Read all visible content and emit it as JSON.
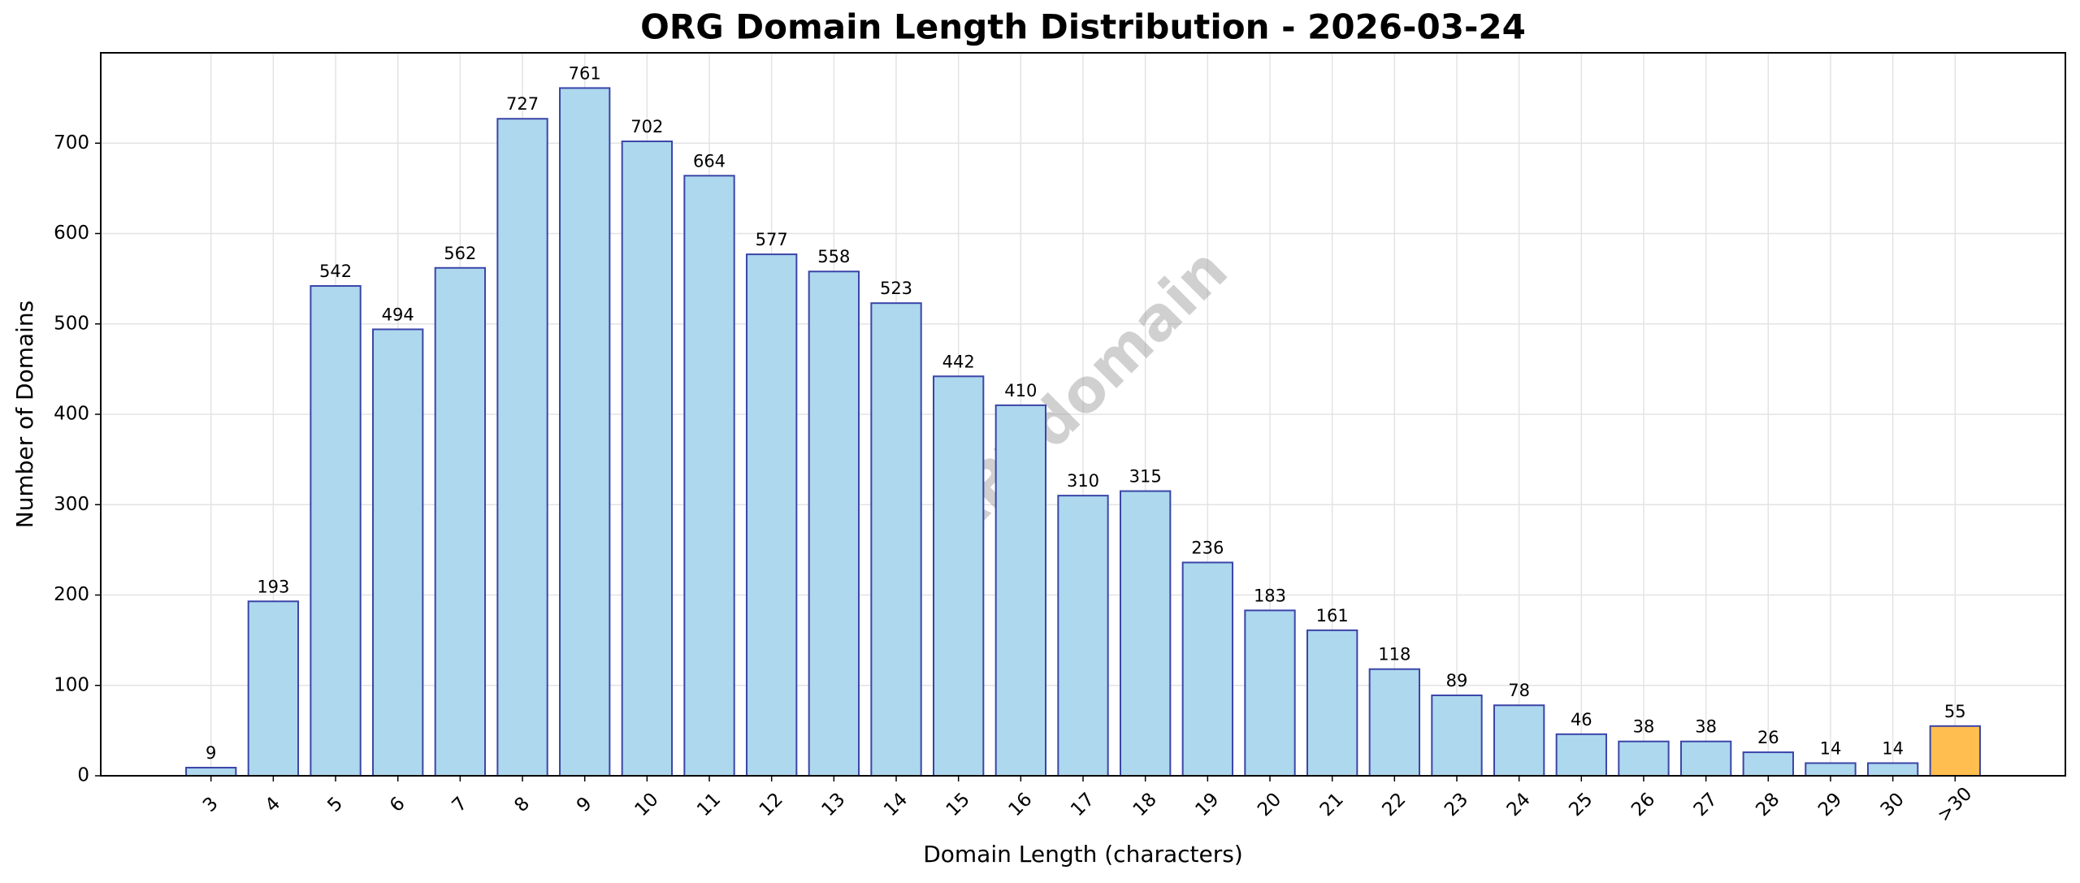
{
  "chart_data": {
    "type": "bar",
    "title": "ORG Domain Length Distribution - 2026-03-24",
    "x_label": "Domain Length (characters)",
    "y_label": "Number of Domains",
    "watermark": "ABTdomain",
    "categories": [
      "3",
      "4",
      "5",
      "6",
      "7",
      "8",
      "9",
      "10",
      "11",
      "12",
      "13",
      "14",
      "15",
      "16",
      "17",
      "18",
      "19",
      "20",
      "21",
      "22",
      "23",
      "24",
      "25",
      "26",
      "27",
      "28",
      "29",
      "30",
      ">30"
    ],
    "values": [
      9,
      193,
      542,
      494,
      562,
      727,
      761,
      702,
      664,
      577,
      558,
      523,
      442,
      410,
      310,
      315,
      236,
      183,
      161,
      118,
      89,
      78,
      46,
      38,
      38,
      26,
      14,
      14,
      55
    ],
    "colors": [
      "#add8ee",
      "#add8ee",
      "#add8ee",
      "#add8ee",
      "#add8ee",
      "#add8ee",
      "#add8ee",
      "#add8ee",
      "#add8ee",
      "#add8ee",
      "#add8ee",
      "#add8ee",
      "#add8ee",
      "#add8ee",
      "#add8ee",
      "#add8ee",
      "#add8ee",
      "#add8ee",
      "#add8ee",
      "#add8ee",
      "#add8ee",
      "#add8ee",
      "#add8ee",
      "#add8ee",
      "#add8ee",
      "#add8ee",
      "#add8ee",
      "#add8ee",
      "#ffbe4f"
    ],
    "edge_color": "#3b45a8",
    "ylim": [
      0,
      800
    ],
    "yticks": [
      0,
      100,
      200,
      300,
      400,
      500,
      600,
      700
    ],
    "grid": true
  }
}
